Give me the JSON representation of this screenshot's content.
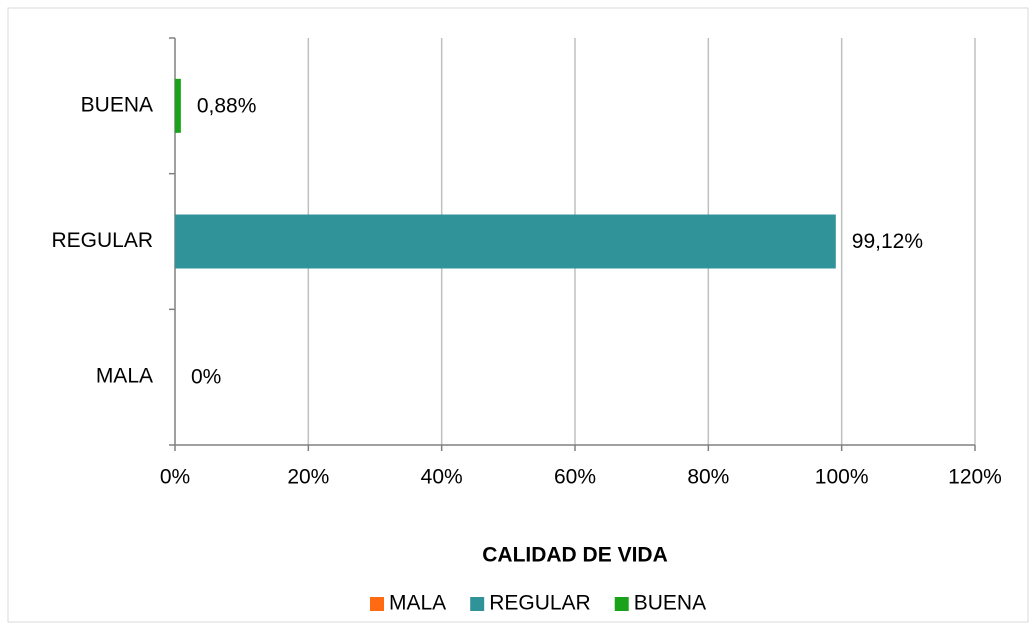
{
  "chart_data": {
    "type": "hbar",
    "categories": [
      "MALA",
      "REGULAR",
      "BUENA"
    ],
    "values": [
      0,
      99.12,
      0.88
    ],
    "value_labels": [
      "0%",
      "99,12%",
      "0,88%"
    ],
    "colors": [
      "#ff6a13",
      "#31939a",
      "#1aa31a"
    ],
    "xlabel": "CALIDAD DE VIDA",
    "xlim": [
      0,
      120
    ],
    "xticks": [
      {
        "value": 0,
        "label": "0%"
      },
      {
        "value": 20,
        "label": "20%"
      },
      {
        "value": 40,
        "label": "40%"
      },
      {
        "value": 60,
        "label": "60%"
      },
      {
        "value": 80,
        "label": "80%"
      },
      {
        "value": 100,
        "label": "100%"
      },
      {
        "value": 120,
        "label": "120%"
      }
    ],
    "grid": true,
    "legend": "bottom"
  }
}
